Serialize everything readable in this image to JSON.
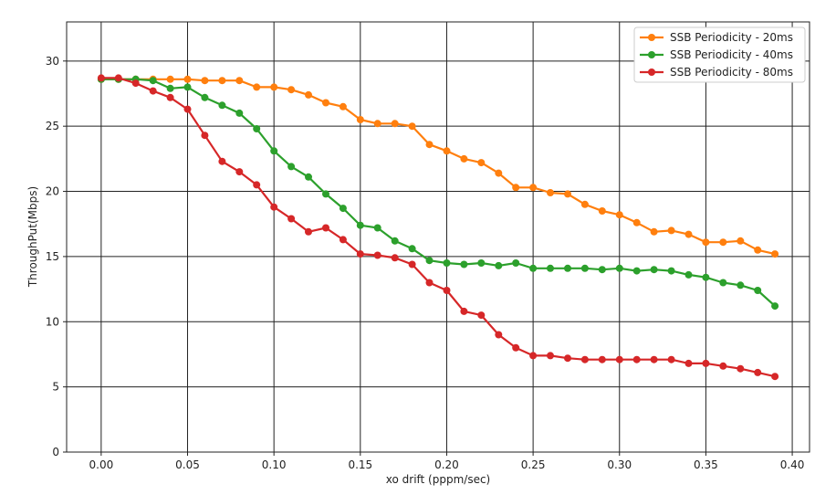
{
  "chart_data": {
    "type": "line",
    "title": "",
    "xlabel": "xo drift (pppm/sec)",
    "ylabel": "ThroughPut(Mbps)",
    "xlim": [
      -0.02,
      0.41
    ],
    "ylim": [
      0,
      33
    ],
    "xticks": [
      "0.00",
      "0.05",
      "0.10",
      "0.15",
      "0.20",
      "0.25",
      "0.30",
      "0.35",
      "0.40"
    ],
    "yticks": [
      "0",
      "5",
      "10",
      "15",
      "20",
      "25",
      "30"
    ],
    "grid": true,
    "legend_position": "top-right",
    "x": [
      0.0,
      0.01,
      0.02,
      0.03,
      0.04,
      0.05,
      0.06,
      0.07,
      0.08,
      0.09,
      0.1,
      0.11,
      0.12,
      0.13,
      0.14,
      0.15,
      0.16,
      0.17,
      0.18,
      0.19,
      0.2,
      0.21,
      0.22,
      0.23,
      0.24,
      0.25,
      0.26,
      0.27,
      0.28,
      0.29,
      0.3,
      0.31,
      0.32,
      0.33,
      0.34,
      0.35,
      0.36,
      0.37,
      0.38,
      0.39
    ],
    "series": [
      {
        "name": "SSB Periodicity - 20ms",
        "color": "#ff7f0e",
        "values": [
          28.6,
          28.6,
          28.6,
          28.6,
          28.6,
          28.6,
          28.5,
          28.5,
          28.5,
          28.0,
          28.0,
          27.8,
          27.4,
          26.8,
          26.5,
          25.5,
          25.2,
          25.2,
          25.0,
          23.6,
          23.1,
          22.5,
          22.2,
          21.4,
          20.3,
          20.3,
          19.9,
          19.8,
          19.0,
          18.5,
          18.2,
          17.6,
          16.9,
          17.0,
          16.7,
          16.1,
          16.1,
          16.2,
          15.5,
          15.2
        ]
      },
      {
        "name": "SSB Periodicity - 40ms",
        "color": "#2ca02c",
        "values": [
          28.6,
          28.6,
          28.6,
          28.5,
          27.9,
          28.0,
          27.2,
          26.6,
          26.0,
          24.8,
          23.1,
          21.9,
          21.1,
          19.8,
          18.7,
          17.4,
          17.2,
          16.2,
          15.6,
          14.7,
          14.5,
          14.4,
          14.5,
          14.3,
          14.5,
          14.1,
          14.1,
          14.1,
          14.1,
          14.0,
          14.1,
          13.9,
          14.0,
          13.9,
          13.6,
          13.4,
          13.0,
          12.8,
          12.4,
          11.2
        ]
      },
      {
        "name": "SSB Periodicity - 80ms",
        "color": "#d62728",
        "values": [
          28.7,
          28.7,
          28.3,
          27.7,
          27.2,
          26.3,
          24.3,
          22.3,
          21.5,
          20.5,
          18.8,
          17.9,
          16.9,
          17.2,
          16.3,
          15.2,
          15.1,
          14.9,
          14.4,
          13.0,
          12.4,
          10.8,
          10.5,
          9.0,
          8.0,
          7.4,
          7.4,
          7.2,
          7.1,
          7.1,
          7.1,
          7.1,
          7.1,
          7.1,
          6.8,
          6.8,
          6.6,
          6.4,
          6.1,
          5.8
        ]
      }
    ]
  }
}
